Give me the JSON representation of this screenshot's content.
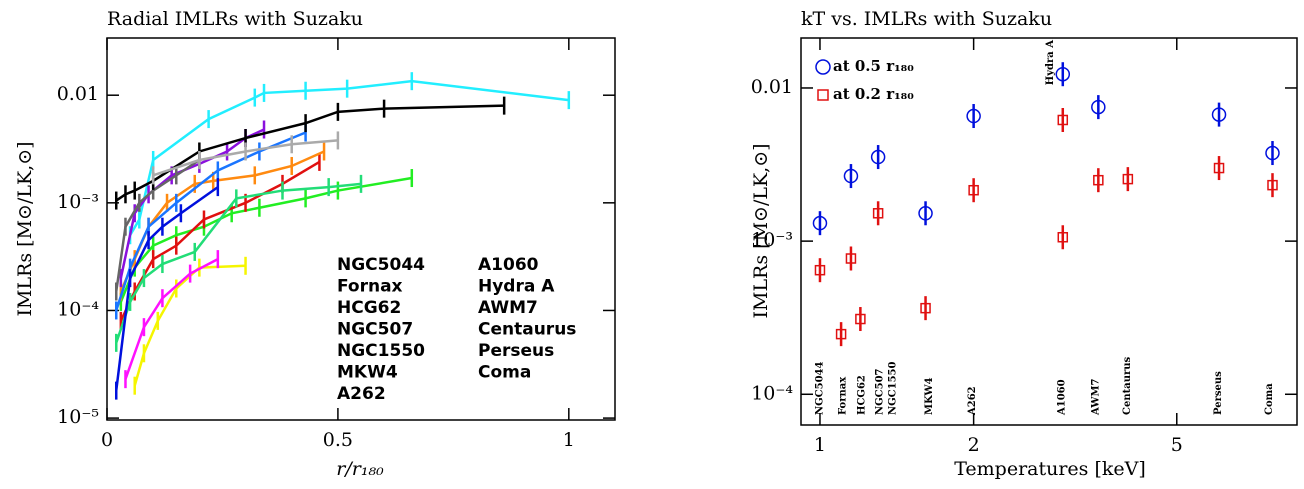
{
  "chart_data": [
    {
      "type": "line",
      "title": "Radial IMLRs with Suzaku",
      "xlabel": "r/r₁₈₀",
      "ylabel": "IMLRs [M⊙/LK,⊙]",
      "xlim": [
        0,
        1.1
      ],
      "xticks": [
        0,
        0.5,
        1
      ],
      "ylim": [
        9.6e-06,
        0.034
      ],
      "yscale": "log",
      "yticks": [
        0.01,
        {
          "value": 0.001,
          "label": "10⁻³"
        },
        {
          "value": 0.0001,
          "label": "10⁻⁴"
        },
        {
          "value": 1e-05,
          "label": "10⁻⁵"
        }
      ],
      "series": [
        {
          "name": "NGC5044",
          "color": "#22ee22",
          "x": [
            0.03,
            0.06,
            0.1,
            0.15,
            0.21,
            0.27,
            0.33,
            0.43,
            0.5,
            0.66
          ],
          "values": [
            0.00012,
            0.00025,
            0.0004,
            0.0005,
            0.0006,
            0.0008,
            0.0009,
            0.0011,
            0.0013,
            0.0017
          ]
        },
        {
          "name": "Fornax",
          "color": "#f5f500",
          "x": [
            0.06,
            0.08,
            0.11,
            0.15,
            0.2,
            0.3
          ],
          "values": [
            2e-05,
            4e-05,
            8e-05,
            0.00016,
            0.00025,
            0.00026
          ]
        },
        {
          "name": "HCG62",
          "color": "#e01010",
          "x": [
            0.03,
            0.06,
            0.1,
            0.15,
            0.21,
            0.3,
            0.38,
            0.46
          ],
          "values": [
            8e-05,
            0.00015,
            0.0003,
            0.0004,
            0.0007,
            0.001,
            0.0015,
            0.0024
          ]
        },
        {
          "name": "NGC507",
          "color": "#ff10ff",
          "x": [
            0.04,
            0.08,
            0.12,
            0.18,
            0.24
          ],
          "values": [
            2.3e-05,
            7e-05,
            0.00013,
            0.00022,
            0.0003
          ]
        },
        {
          "name": "NGC1550",
          "color": "#ff8a10",
          "x": [
            0.03,
            0.06,
            0.09,
            0.13,
            0.19,
            0.23,
            0.32,
            0.4,
            0.47
          ],
          "values": [
            0.00015,
            0.0003,
            0.0006,
            0.001,
            0.0015,
            0.0016,
            0.0018,
            0.0022,
            0.003
          ]
        },
        {
          "name": "MKW4",
          "color": "#22dd77",
          "x": [
            0.02,
            0.05,
            0.08,
            0.12,
            0.19,
            0.28,
            0.38,
            0.48,
            0.55
          ],
          "values": [
            5e-05,
            0.00012,
            0.0002,
            0.00027,
            0.00035,
            0.0011,
            0.0013,
            0.0014,
            0.0015
          ]
        },
        {
          "name": "A262",
          "color": "#1a75ff",
          "x": [
            0.02,
            0.05,
            0.09,
            0.15,
            0.24,
            0.33,
            0.43
          ],
          "values": [
            0.0001,
            0.00025,
            0.0006,
            0.001,
            0.002,
            0.003,
            0.0045
          ]
        },
        {
          "name": "A1060",
          "color": "#0010dd",
          "x": [
            0.02,
            0.05,
            0.09,
            0.12,
            0.16,
            0.24
          ],
          "values": [
            1.8e-05,
            0.0002,
            0.00045,
            0.0006,
            0.0008,
            0.0014
          ]
        },
        {
          "name": "Hydra A",
          "color": "#22eeff",
          "x": [
            0.05,
            0.07,
            0.1,
            0.22,
            0.32,
            0.34,
            0.43,
            0.52,
            0.66,
            1.0
          ],
          "values": [
            0.0005,
            0.0007,
            0.0025,
            0.006,
            0.0095,
            0.0105,
            0.011,
            0.0115,
            0.0135,
            0.009
          ]
        },
        {
          "name": "AWM7",
          "color": "#8a10dd",
          "x": [
            0.03,
            0.06,
            0.09,
            0.14,
            0.2,
            0.26,
            0.3,
            0.34
          ],
          "values": [
            0.0002,
            0.0008,
            0.0012,
            0.0018,
            0.0023,
            0.003,
            0.004,
            0.0048
          ]
        },
        {
          "name": "Centaurus",
          "color": "#666666",
          "x": [
            0.02,
            0.04,
            0.07,
            0.1,
            0.15,
            0.2
          ],
          "values": [
            0.00015,
            0.0006,
            0.001,
            0.0013,
            0.0018,
            0.0025
          ]
        },
        {
          "name": "Perseus",
          "color": "#000000",
          "x": [
            0.02,
            0.04,
            0.06,
            0.1,
            0.2,
            0.3,
            0.43,
            0.5,
            0.6,
            0.86
          ],
          "values": [
            0.00105,
            0.0012,
            0.0013,
            0.0016,
            0.003,
            0.004,
            0.0055,
            0.007,
            0.0075,
            0.008
          ]
        },
        {
          "name": "Coma",
          "color": "#aaaaaa",
          "x": [
            0.1,
            0.2,
            0.3,
            0.4,
            0.5
          ],
          "values": [
            0.0018,
            0.0025,
            0.003,
            0.0035,
            0.0038
          ]
        }
      ]
    },
    {
      "type": "scatter",
      "title": "kT vs. IMLRs with Suzaku",
      "xlabel": "Temperatures [keV]",
      "ylabel": "IMLRs [M⊙/LK,⊙]",
      "xlim": [
        0.918,
        8.6
      ],
      "xscale": "log",
      "xticks": [
        1,
        2,
        5
      ],
      "ylim": [
        6.3e-05,
        0.0212
      ],
      "yscale": "log",
      "yticks": [
        0.01,
        {
          "value": 0.001,
          "label": "10⁻³"
        },
        {
          "value": 0.0001,
          "label": "10⁻⁴"
        }
      ],
      "series": [
        {
          "name": "at 0.5 r₁₈₀",
          "color": "#0010dd",
          "marker": "circle",
          "x": [
            1.0,
            1.15,
            1.3,
            1.61,
            2.0,
            2.99,
            3.51,
            6.05,
            7.7
          ],
          "values": [
            0.00131,
            0.00266,
            0.00354,
            0.00152,
            0.00656,
            0.0123,
            0.0075,
            0.0067,
            0.00376
          ]
        },
        {
          "name": "at 0.2 r₁₈₀",
          "color": "#e01010",
          "marker": "square",
          "x": [
            1.0,
            1.1,
            1.15,
            1.2,
            1.3,
            1.61,
            2.0,
            2.99,
            2.99,
            3.51,
            4.01,
            6.05,
            7.7
          ],
          "values": [
            0.000646,
            0.000247,
            0.00077,
            0.00031,
            0.00152,
            0.000365,
            0.00215,
            0.00618,
            0.00106,
            0.0025,
            0.00254,
            0.003,
            0.00232
          ]
        }
      ],
      "annotations": [
        {
          "text": "NGC5044",
          "x": 1.0
        },
        {
          "text": "Fornax",
          "x": 1.11
        },
        {
          "text": "HCG62",
          "x": 1.21
        },
        {
          "text": "NGC507",
          "x": 1.31
        },
        {
          "text": "NGC1550",
          "x": 1.39
        },
        {
          "text": "MKW4",
          "x": 1.64
        },
        {
          "text": "A262",
          "x": 1.99
        },
        {
          "text": "Hydra A",
          "x": 2.83
        },
        {
          "text": "A1060",
          "x": 2.98
        },
        {
          "text": "AWM7",
          "x": 3.47
        },
        {
          "text": "Centaurus",
          "x": 4.0
        },
        {
          "text": "Perseus",
          "x": 6.03
        },
        {
          "text": "Coma",
          "x": 7.6
        }
      ]
    }
  ]
}
